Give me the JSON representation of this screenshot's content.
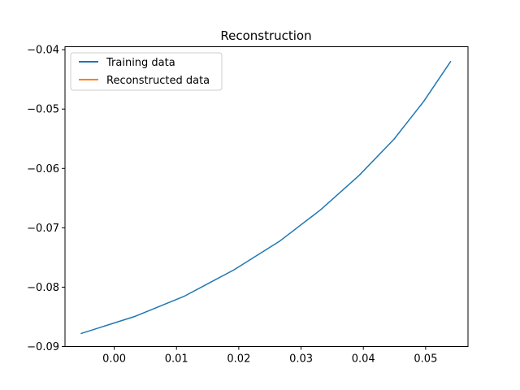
{
  "chart_data": {
    "type": "line",
    "title": "Reconstruction",
    "xlabel": "",
    "ylabel": "",
    "xlim": [
      -0.0079,
      0.0568
    ],
    "ylim": [
      -0.09,
      -0.0395
    ],
    "x_ticks": [
      0.0,
      0.01,
      0.02,
      0.03,
      0.04,
      0.05
    ],
    "x_tick_labels": [
      "0.00",
      "0.01",
      "0.02",
      "0.03",
      "0.04",
      "0.05"
    ],
    "y_ticks": [
      -0.09,
      -0.08,
      -0.07,
      -0.06,
      -0.05,
      -0.04
    ],
    "y_tick_labels": [
      "−0.09",
      "−0.08",
      "−0.07",
      "−0.06",
      "−0.05",
      "−0.04"
    ],
    "grid": false,
    "legend_position": "top-left",
    "series": [
      {
        "name": "Training data",
        "color": "#1f77b4",
        "x": [
          -0.0053,
          0.0034,
          0.0113,
          0.0192,
          0.0265,
          0.0331,
          0.0393,
          0.0449,
          0.0497,
          0.054
        ],
        "y": [
          -0.0878,
          -0.0849,
          -0.0815,
          -0.0771,
          -0.0723,
          -0.067,
          -0.0612,
          -0.0551,
          -0.0487,
          -0.042
        ]
      },
      {
        "name": "Reconstructed data",
        "color": "#ff7f0e",
        "x": [],
        "y": []
      }
    ]
  }
}
